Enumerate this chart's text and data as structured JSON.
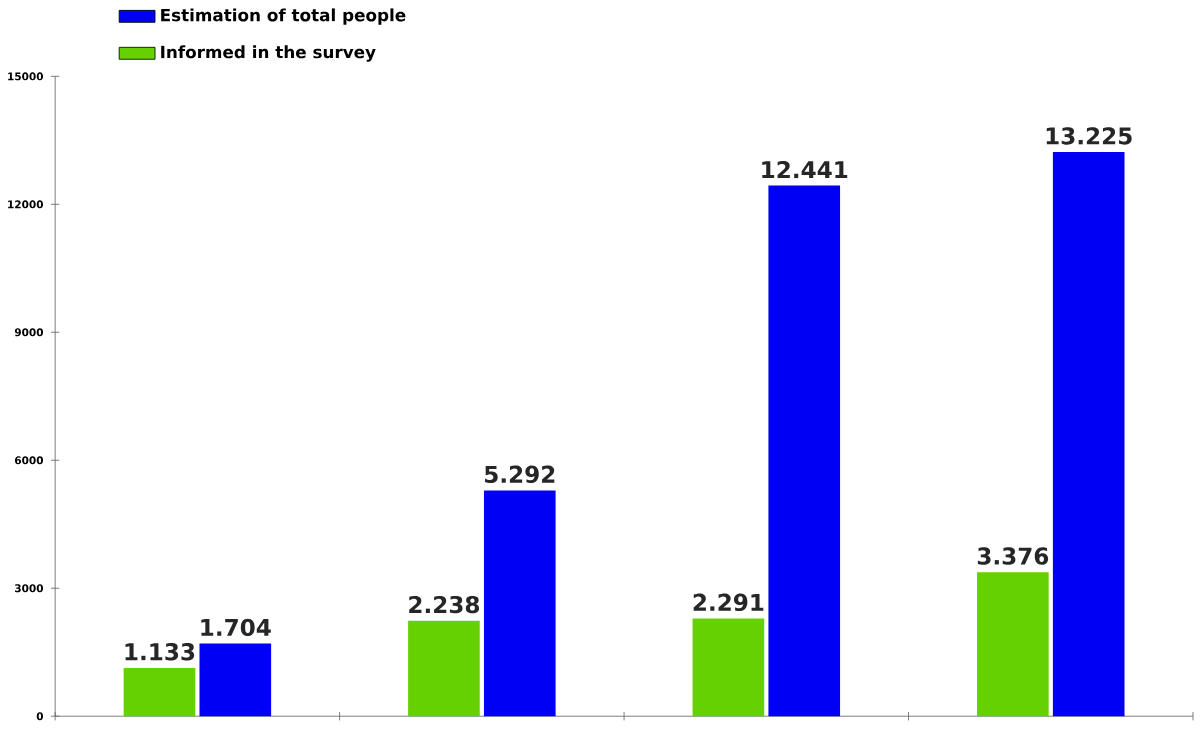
{
  "chart_data": {
    "type": "bar",
    "categories": [
      null,
      null,
      null,
      null
    ],
    "series": [
      {
        "name": "Informed in the survey",
        "color": "#66d100",
        "values": [
          1133,
          2238,
          2291,
          3376
        ],
        "value_labels": [
          "1.133",
          "2.238",
          "2.291",
          "3.376"
        ]
      },
      {
        "name": "Estimation of total people",
        "color": "#0000f5",
        "values": [
          1704,
          5292,
          12441,
          13225
        ],
        "value_labels": [
          "1.704",
          "5.292",
          "12.441",
          "13.225"
        ]
      }
    ],
    "ylim": [
      0,
      15000
    ],
    "yticks": [
      0,
      3000,
      6000,
      9000,
      12000,
      15000
    ],
    "grid": false,
    "legend": "top left"
  }
}
